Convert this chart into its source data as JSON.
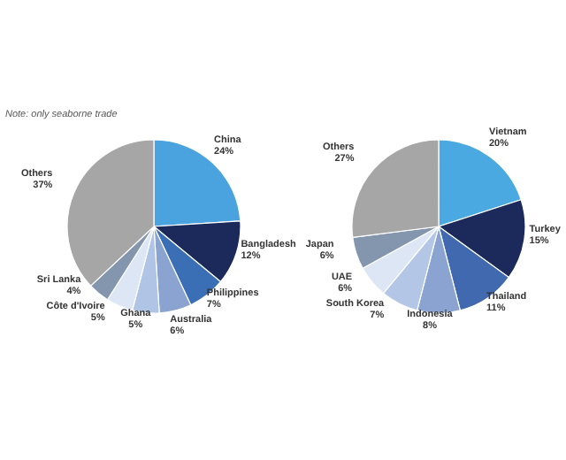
{
  "chart_data": [
    {
      "type": "pie",
      "categories": [
        "China",
        "Bangladesh",
        "Philippines",
        "Australia",
        "Ghana",
        "Côte d'Ivoire",
        "Sri Lanka",
        "Others"
      ],
      "values": [
        24,
        12,
        7,
        6,
        5,
        5,
        4,
        37
      ],
      "value_labels": [
        "24%",
        "12%",
        "7%",
        "6%",
        "5%",
        "5%",
        "4%",
        "37%"
      ],
      "colors": [
        "#4aa3df",
        "#1b2a5a",
        "#3a6fb5",
        "#8aa3d0",
        "#b0c4e6",
        "#dde6f4",
        "#8496ad",
        "#a6a6a6"
      ],
      "annotations": [
        "Note: only seaborne trade"
      ]
    },
    {
      "type": "pie",
      "categories": [
        "Vietnam",
        "Turkey",
        "Thailand",
        "Indonesia",
        "South Korea",
        "UAE",
        "Japan",
        "Others"
      ],
      "values": [
        20,
        15,
        11,
        8,
        7,
        6,
        6,
        27
      ],
      "value_labels": [
        "20%",
        "15%",
        "11%",
        "8%",
        "7%",
        "6%",
        "6%",
        "27%"
      ],
      "colors": [
        "#4aa9e0",
        "#1b2a5a",
        "#4169b0",
        "#8aa3d0",
        "#b4c6e6",
        "#dde6f4",
        "#8496ad",
        "#a6a6a6"
      ]
    }
  ]
}
